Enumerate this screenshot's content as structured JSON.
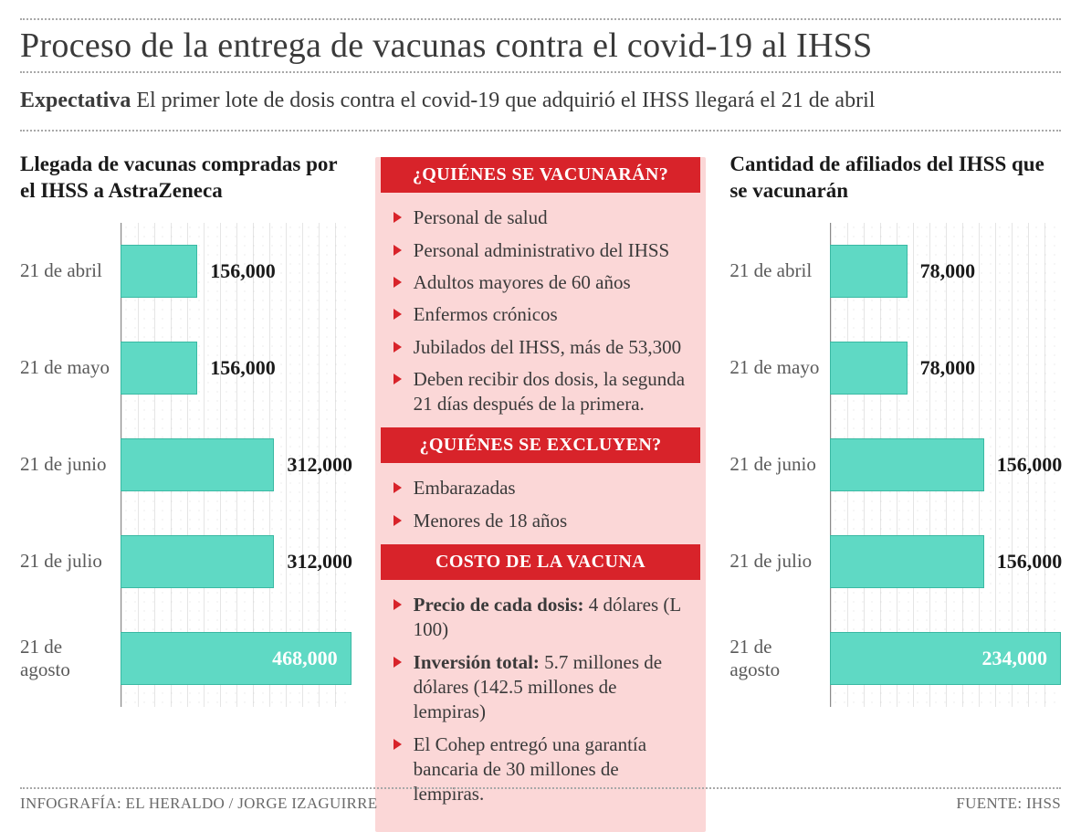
{
  "colors": {
    "bar_fill": "#5fd9c4",
    "bar_border": "#3ab9a3",
    "accent_red": "#d8232a",
    "panel_bg": "#fbd7d7",
    "title_color": "#3a3a3a",
    "value_color": "#1a1a1a",
    "value_inside_color": "#ffffff",
    "grid_dot": "#a8a8a8"
  },
  "title": "Proceso de la entrega de vacunas contra el covid-19 al IHSS",
  "subtitle_strong": "Expectativa",
  "subtitle_rest": " El primer lote de dosis contra el covid-19 que adquirió el IHSS llegará el 21 de abril",
  "chart_left": {
    "title": "Llegada de vacunas compradas por el IHSS a AstraZeneca",
    "type": "bar-horizontal",
    "x_max": 468000,
    "bar_color": "#5fd9c4",
    "rows": [
      {
        "label": "21 de abril",
        "value": 156000,
        "value_text": "156,000",
        "inside": false
      },
      {
        "label": "21 de mayo",
        "value": 156000,
        "value_text": "156,000",
        "inside": false
      },
      {
        "label": "21 de junio",
        "value": 312000,
        "value_text": "312,000",
        "inside": false
      },
      {
        "label": "21 de julio",
        "value": 312000,
        "value_text": "312,000",
        "inside": false
      },
      {
        "label": "21 de agosto",
        "value": 468000,
        "value_text": "468,000",
        "inside": true
      }
    ]
  },
  "chart_right": {
    "title": "Cantidad de afiliados del IHSS que se vacunarán",
    "type": "bar-horizontal",
    "x_max": 234000,
    "bar_color": "#5fd9c4",
    "rows": [
      {
        "label": "21 de abril",
        "value": 78000,
        "value_text": "78,000",
        "inside": false
      },
      {
        "label": "21 de mayo",
        "value": 78000,
        "value_text": "78,000",
        "inside": false
      },
      {
        "label": "21 de junio",
        "value": 156000,
        "value_text": "156,000",
        "inside": false
      },
      {
        "label": "21 de julio",
        "value": 156000,
        "value_text": "156,000",
        "inside": false
      },
      {
        "label": "21 de agosto",
        "value": 234000,
        "value_text": "234,000",
        "inside": true
      }
    ]
  },
  "panel": {
    "sections": [
      {
        "head": "¿QUIÉNES SE VACUNARÁN?",
        "items": [
          "Personal de salud",
          "Personal administrativo del IHSS",
          "Adultos mayores de 60 años",
          "Enfermos crónicos",
          "Jubilados del IHSS, más de 53,300",
          "Deben recibir dos dosis, la segunda 21 días después de la primera."
        ]
      },
      {
        "head": "¿QUIÉNES SE EXCLUYEN?",
        "items": [
          "Embarazadas",
          "Menores de 18 años"
        ]
      },
      {
        "head": "COSTO DE LA VACUNA",
        "items_rich": [
          {
            "strong": "Precio de cada dosis:",
            "rest": " 4 dólares (L 100)"
          },
          {
            "strong": "Inversión total:",
            "rest": " 5.7 millones de dólares (142.5 millones de lempiras)"
          },
          {
            "strong": "",
            "rest": "El Cohep entregó una garantía bancaria de 30 millones de lempiras."
          }
        ]
      }
    ]
  },
  "footer_left": "INFOGRAFÍA: EL HERALDO / JORGE IZAGUIRRE",
  "footer_right": "FUENTE: IHSS"
}
